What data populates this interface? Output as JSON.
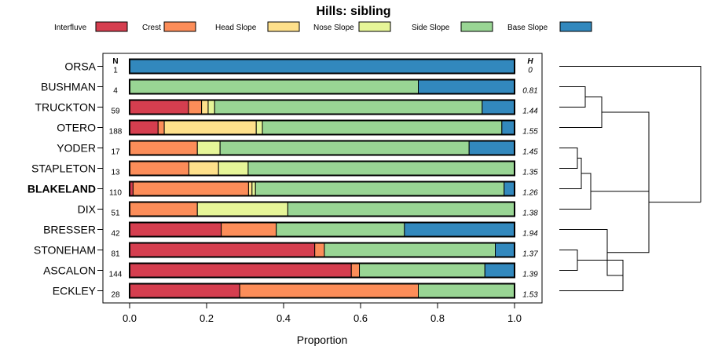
{
  "chart_data": {
    "type": "bar",
    "stacked": true,
    "orientation": "horizontal",
    "title": "Hills: sibling",
    "xlabel": "Proportion",
    "ylabel": "",
    "xlim": [
      0,
      1
    ],
    "xticks": [
      0.0,
      0.2,
      0.4,
      0.6,
      0.8,
      1.0
    ],
    "xtick_labels": [
      "0.0",
      "0.2",
      "0.4",
      "0.6",
      "0.8",
      "1.0"
    ],
    "n_header": "N",
    "h_header": "H",
    "legend_position": "top",
    "legend": [
      {
        "name": "Interfluve",
        "color": "#d53e4f"
      },
      {
        "name": "Crest",
        "color": "#fc8d59"
      },
      {
        "name": "Head Slope",
        "color": "#fee08b"
      },
      {
        "name": "Nose Slope",
        "color": "#e6f598"
      },
      {
        "name": "Side Slope",
        "color": "#99d594"
      },
      {
        "name": "Base Slope",
        "color": "#3288bd"
      }
    ],
    "categories": [
      "ORSA",
      "BUSHMAN",
      "TRUCKTON",
      "OTERO",
      "YODER",
      "STAPLETON",
      "BLAKELAND",
      "DIX",
      "BRESSER",
      "STONEHAM",
      "ASCALON",
      "ECKLEY"
    ],
    "highlighted": "BLAKELAND",
    "n_values": [
      "1",
      "4",
      "59",
      "188",
      "17",
      "13",
      "110",
      "51",
      "42",
      "81",
      "144",
      "28"
    ],
    "h_values": [
      "0",
      "0.81",
      "1.44",
      "1.55",
      "1.45",
      "1.35",
      "1.26",
      "1.38",
      "1.94",
      "1.37",
      "1.39",
      "1.53"
    ],
    "proportions": [
      [
        0.0,
        0.0,
        0.0,
        0.0,
        0.0,
        1.0
      ],
      [
        0.0,
        0.0,
        0.0,
        0.0,
        0.75,
        0.25
      ],
      [
        0.153,
        0.034,
        0.017,
        0.017,
        0.695,
        0.085
      ],
      [
        0.074,
        0.016,
        0.239,
        0.016,
        0.622,
        0.032
      ],
      [
        0.0,
        0.176,
        0.0,
        0.059,
        0.647,
        0.118
      ],
      [
        0.0,
        0.154,
        0.077,
        0.077,
        0.692,
        0.0
      ],
      [
        0.009,
        0.3,
        0.009,
        0.009,
        0.646,
        0.027
      ],
      [
        0.0,
        0.176,
        0.0,
        0.235,
        0.589,
        0.0
      ],
      [
        0.238,
        0.143,
        0.0,
        0.0,
        0.333,
        0.286
      ],
      [
        0.481,
        0.025,
        0.0,
        0.0,
        0.444,
        0.05
      ],
      [
        0.576,
        0.021,
        0.0,
        0.0,
        0.326,
        0.077
      ],
      [
        0.286,
        0.464,
        0.0,
        0.0,
        0.25,
        0.0
      ]
    ],
    "dendrogram": "hierarchical clustering of profiles (right side)"
  }
}
